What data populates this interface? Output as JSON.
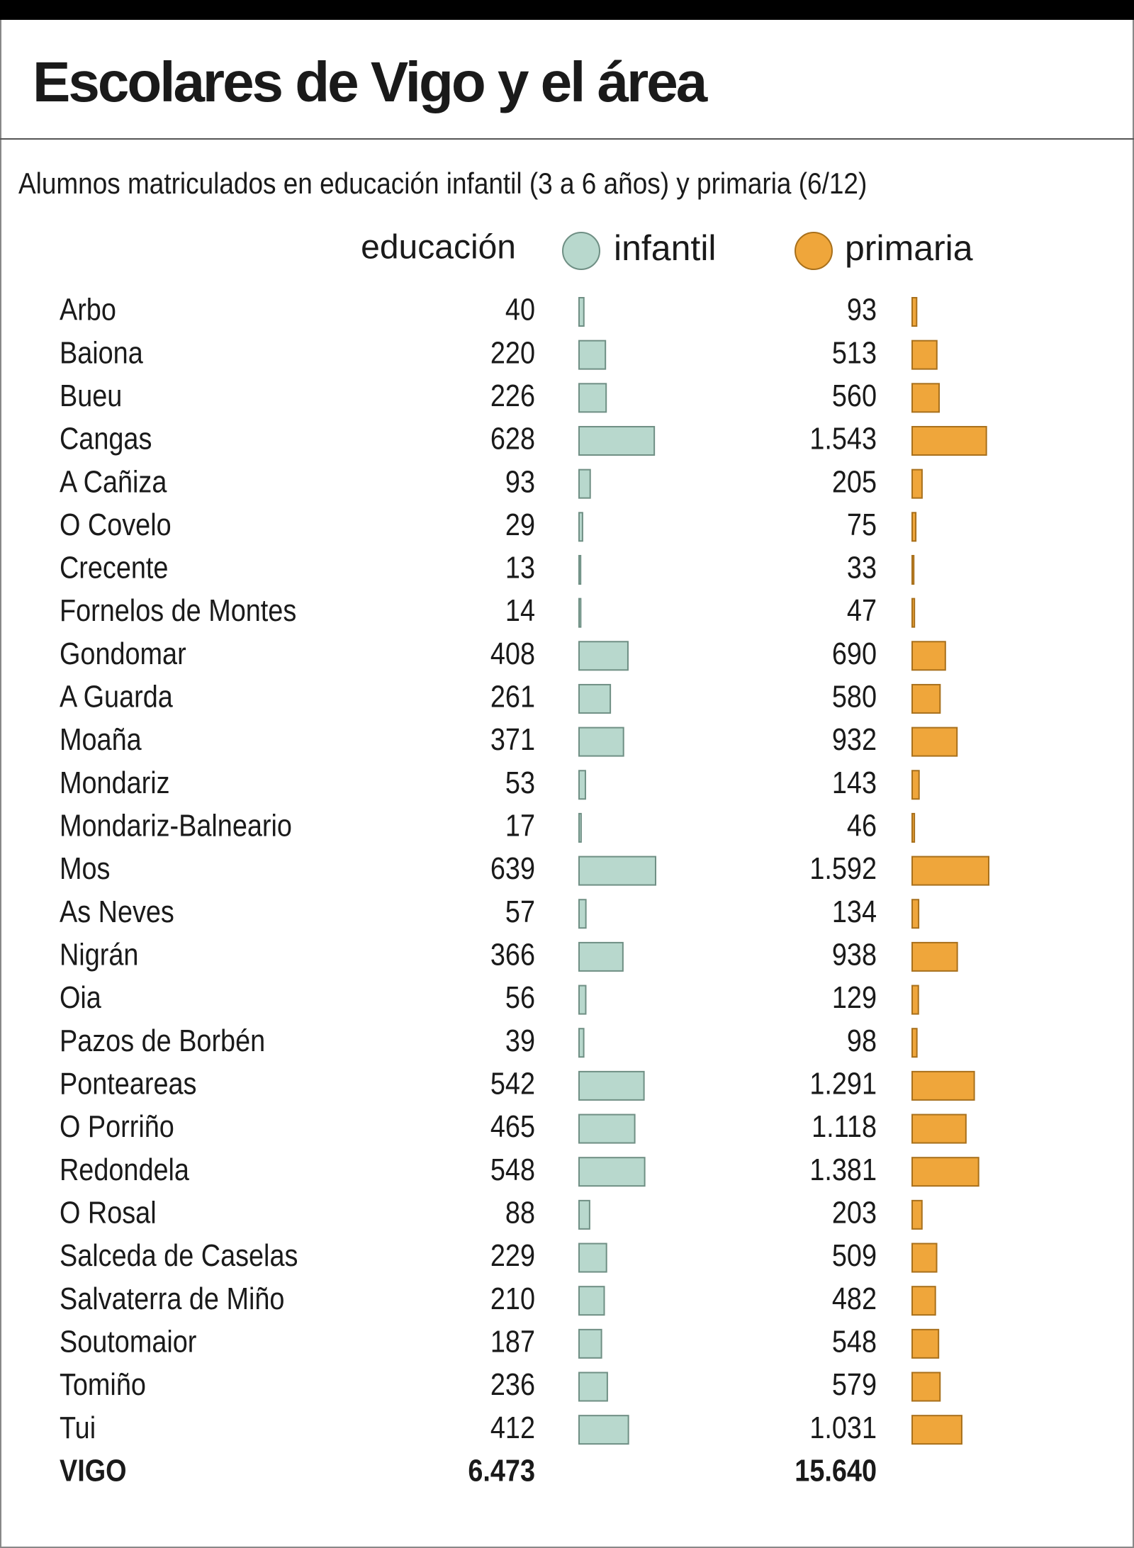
{
  "chart_data": {
    "type": "bar",
    "title": "Escolares de Vigo y el área",
    "subtitle": "Alumnos matriculados en educación infantil (3 a 6 años)  y primaria (6/12)",
    "legend_title": "educación",
    "categories": [
      "Arbo",
      "Baiona",
      "Bueu",
      "Cangas",
      "A Cañiza",
      "O Covelo",
      "Crecente",
      "Fornelos de Montes",
      "Gondomar",
      "A Guarda",
      "Moaña",
      "Mondariz",
      "Mondariz-Balneario",
      "Mos",
      "As Neves",
      "Nigrán",
      "Oia",
      "Pazos de Borbén",
      "Ponteareas",
      "O Porriño",
      "Redondela",
      "O Rosal",
      "Salceda de Caselas",
      "Salvaterra de Miño",
      "Soutomaior",
      "Tomiño",
      "Tui"
    ],
    "series": [
      {
        "name": "infantil",
        "color": "#b8d8cd",
        "stroke": "#6f8f84",
        "values": [
          40,
          220,
          226,
          628,
          93,
          29,
          13,
          14,
          408,
          261,
          371,
          53,
          17,
          639,
          57,
          366,
          56,
          39,
          542,
          465,
          548,
          88,
          229,
          210,
          187,
          236,
          412
        ]
      },
      {
        "name": "primaria",
        "color": "#efa63b",
        "stroke": "#a8701c",
        "values": [
          93,
          513,
          560,
          1543,
          205,
          75,
          33,
          47,
          690,
          580,
          932,
          143,
          46,
          1592,
          134,
          938,
          129,
          98,
          1291,
          1118,
          1381,
          203,
          509,
          482,
          548,
          579,
          1031
        ],
        "value_labels": [
          "93",
          "513",
          "560",
          "1.543",
          "205",
          "75",
          "33",
          "47",
          "690",
          "580",
          "932",
          "143",
          "46",
          "1.592",
          "134",
          "938",
          "129",
          "98",
          "1.291",
          "1.118",
          "1.381",
          "203",
          "509",
          "482",
          "548",
          "579",
          "1.031"
        ]
      }
    ],
    "total": {
      "label": "VIGO",
      "values": [
        6473,
        15640
      ],
      "value_labels": [
        "6.473",
        "15.640"
      ]
    }
  }
}
